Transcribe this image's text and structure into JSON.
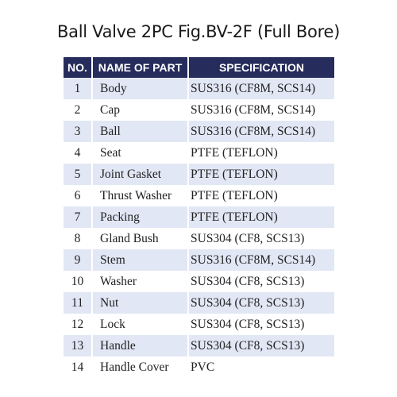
{
  "title": "Ball Valve 2PC Fig.BV-2F (Full Bore)",
  "table": {
    "headers": {
      "no": "NO.",
      "name": "NAME OF PART",
      "spec": "SPECIFICATION"
    },
    "header_color": "#262d5c",
    "stripe_color": "#e2e7f5",
    "rows": [
      {
        "no": "1",
        "name": "Body",
        "spec": "SUS316 (CF8M, SCS14)"
      },
      {
        "no": "2",
        "name": "Cap",
        "spec": "SUS316 (CF8M, SCS14)"
      },
      {
        "no": "3",
        "name": "Ball",
        "spec": "SUS316 (CF8M, SCS14)"
      },
      {
        "no": "4",
        "name": "Seat",
        "spec": "PTFE (TEFLON)"
      },
      {
        "no": "5",
        "name": "Joint Gasket",
        "spec": "PTFE (TEFLON)"
      },
      {
        "no": "6",
        "name": "Thrust Washer",
        "spec": "PTFE (TEFLON)"
      },
      {
        "no": "7",
        "name": "Packing",
        "spec": "PTFE (TEFLON)"
      },
      {
        "no": "8",
        "name": "Gland Bush",
        "spec": "SUS304 (CF8, SCS13)"
      },
      {
        "no": "9",
        "name": "Stem",
        "spec": "SUS316 (CF8M, SCS14)"
      },
      {
        "no": "10",
        "name": "Washer",
        "spec": "SUS304 (CF8, SCS13)"
      },
      {
        "no": "11",
        "name": "Nut",
        "spec": "SUS304 (CF8, SCS13)"
      },
      {
        "no": "12",
        "name": "Lock",
        "spec": "SUS304 (CF8, SCS13)"
      },
      {
        "no": "13",
        "name": "Handle",
        "spec": "SUS304 (CF8, SCS13)"
      },
      {
        "no": "14",
        "name": "Handle Cover",
        "spec": "PVC"
      }
    ]
  }
}
